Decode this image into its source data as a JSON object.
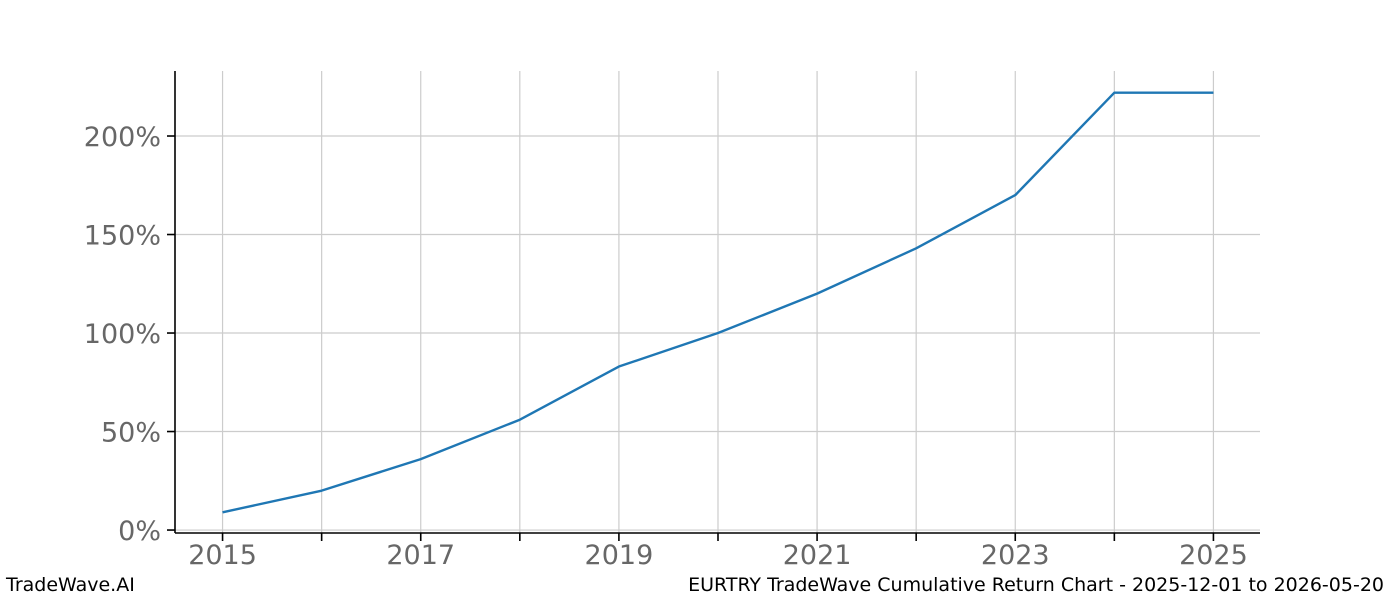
{
  "footer": {
    "brand": "TradeWave.AI",
    "title": "EURTRY TradeWave Cumulative Return Chart - 2025-12-01 to 2026-05-20"
  },
  "chart_data": {
    "type": "line",
    "title": "",
    "xlabel": "",
    "ylabel": "",
    "x": [
      2015,
      2016,
      2017,
      2018,
      2019,
      2020,
      2021,
      2022,
      2023,
      2024,
      2025
    ],
    "series": [
      {
        "name": "EURTRY Cumulative Return %",
        "values": [
          9,
          20,
          36,
          56,
          83,
          100,
          120,
          143,
          170,
          222,
          222
        ]
      }
    ],
    "xlim": [
      2014.52,
      2025.47
    ],
    "ylim": [
      -1.5,
      233
    ],
    "x_ticks": [
      2015,
      2016,
      2017,
      2018,
      2019,
      2020,
      2021,
      2022,
      2023,
      2024,
      2025
    ],
    "x_tick_labels": [
      "2015",
      "",
      "2017",
      "",
      "2019",
      "",
      "2021",
      "",
      "2023",
      "",
      "2025"
    ],
    "y_ticks": [
      0,
      50,
      100,
      150,
      200
    ],
    "y_tick_labels": [
      "0%",
      "50%",
      "100%",
      "150%",
      "200%"
    ],
    "grid": true,
    "legend": "none",
    "line_color": "#1f77b4",
    "grid_color": "#cccccc",
    "spine_color": "#000000",
    "tick_label_color": "#676767"
  }
}
